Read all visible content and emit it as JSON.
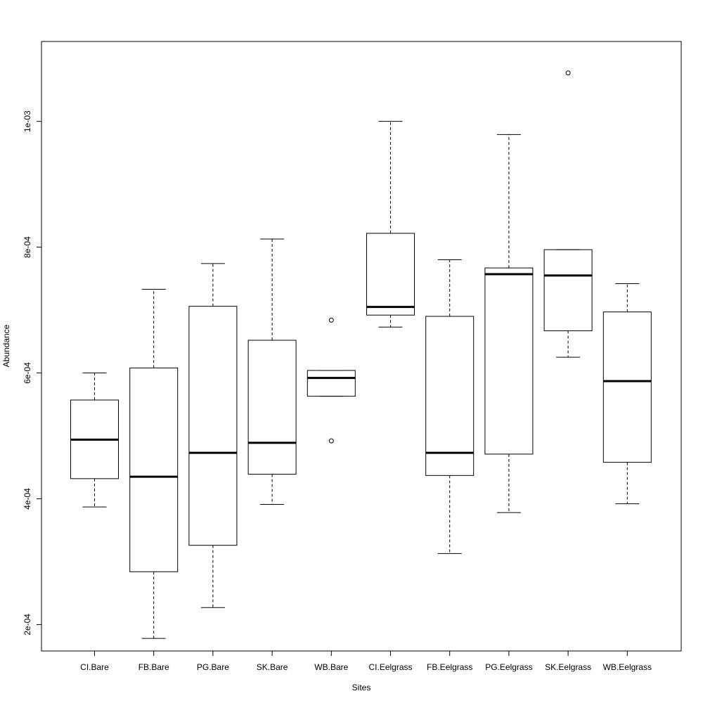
{
  "chart_data": {
    "type": "boxplot",
    "xlabel": "Sites",
    "ylabel": "Abundance",
    "ylim": [
      0.000158,
      0.001127
    ],
    "yticks": [
      0.0002,
      0.0004,
      0.0006,
      0.0008,
      0.001
    ],
    "ytick_labels": [
      "2e-04",
      "4e-04",
      "6e-04",
      "8e-04",
      "1e-03"
    ],
    "grid": false,
    "legend": "none",
    "categories": [
      "CI.Bare",
      "FB.Bare",
      "PG.Bare",
      "SK.Bare",
      "WB.Bare",
      "CI.Eelgrass",
      "FB.Eelgrass",
      "PG.Eelgrass",
      "SK.Eelgrass",
      "WB.Eelgrass"
    ],
    "boxes": [
      {
        "min": 0.000387,
        "q1": 0.000432,
        "median": 0.000494,
        "q3": 0.000557,
        "max": 0.0006,
        "outliers": []
      },
      {
        "min": 0.000178,
        "q1": 0.000284,
        "median": 0.000435,
        "q3": 0.000608,
        "max": 0.000733,
        "outliers": []
      },
      {
        "min": 0.000227,
        "q1": 0.000326,
        "median": 0.000473,
        "q3": 0.000706,
        "max": 0.000774,
        "outliers": []
      },
      {
        "min": 0.000391,
        "q1": 0.000439,
        "median": 0.000489,
        "q3": 0.000652,
        "max": 0.000813,
        "outliers": []
      },
      {
        "min": 0.000563,
        "q1": 0.000563,
        "median": 0.000592,
        "q3": 0.000604,
        "max": 0.000604,
        "outliers": [
          0.000684,
          0.000492
        ]
      },
      {
        "min": 0.000673,
        "q1": 0.000692,
        "median": 0.000705,
        "q3": 0.000822,
        "max": 0.001,
        "outliers": []
      },
      {
        "min": 0.000313,
        "q1": 0.000437,
        "median": 0.000473,
        "q3": 0.00069,
        "max": 0.00078,
        "outliers": []
      },
      {
        "min": 0.000378,
        "q1": 0.000471,
        "median": 0.000757,
        "q3": 0.000767,
        "max": 0.000979,
        "outliers": []
      },
      {
        "min": 0.000625,
        "q1": 0.000667,
        "median": 0.000755,
        "q3": 0.000796,
        "max": 0.000796,
        "outliers": [
          0.001077
        ]
      },
      {
        "min": 0.000392,
        "q1": 0.000458,
        "median": 0.000587,
        "q3": 0.000697,
        "max": 0.000742,
        "outliers": []
      }
    ]
  }
}
